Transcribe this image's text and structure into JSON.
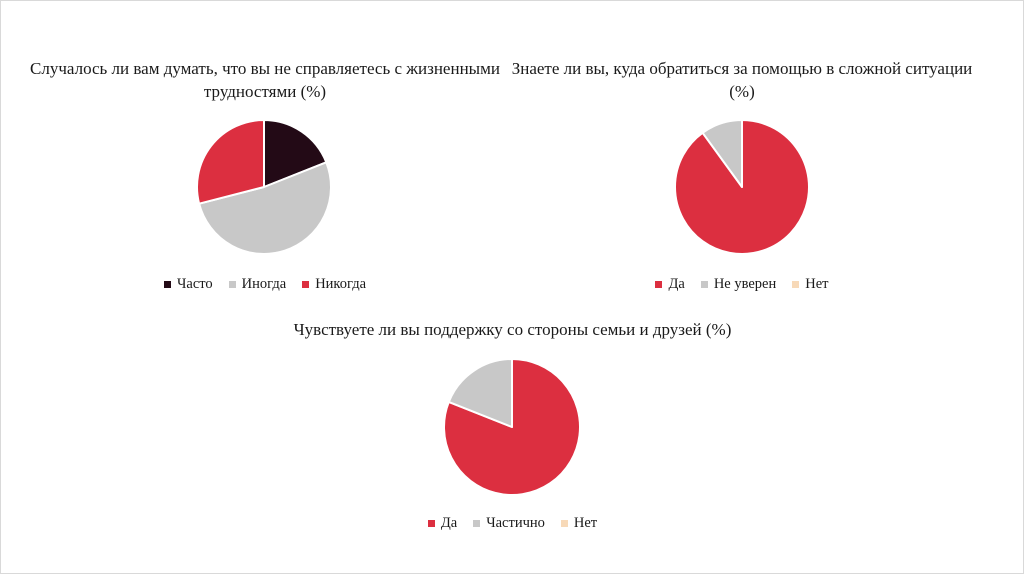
{
  "chart_data": [
    {
      "type": "pie",
      "title": "Случалось ли вам думать, что вы не справляетесь с жизненными трудностями (%)",
      "categories": [
        "Часто",
        "Иногда",
        "Никогда"
      ],
      "values": [
        19,
        52,
        29
      ],
      "colors": [
        "#230a16",
        "#c8c8c8",
        "#dc2f40"
      ],
      "legend_position": "bottom"
    },
    {
      "type": "pie",
      "title": "Знаете ли вы, куда обратиться за помощью в сложной ситуации (%)",
      "categories": [
        "Да",
        "Не уверен",
        "Нет"
      ],
      "values": [
        90,
        10,
        0
      ],
      "colors": [
        "#dc2f40",
        "#c8c8c8",
        "#f7d9b8"
      ],
      "legend_position": "bottom"
    },
    {
      "type": "pie",
      "title": "Чувствуете ли вы поддержку со стороны семьи и друзей (%)",
      "categories": [
        "Да",
        "Частично",
        "Нет"
      ],
      "values": [
        81,
        19,
        0
      ],
      "colors": [
        "#dc2f40",
        "#c8c8c8",
        "#f7d9b8"
      ],
      "legend_position": "bottom"
    }
  ]
}
